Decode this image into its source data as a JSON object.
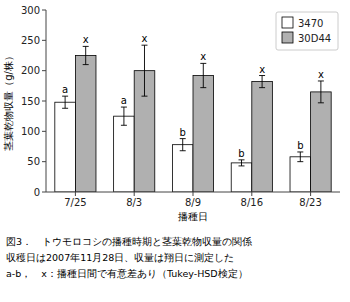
{
  "chart_data": {
    "type": "bar",
    "categories": [
      "7/25",
      "8/3",
      "8/9",
      "8/16",
      "8/23"
    ],
    "series": [
      {
        "name": "3470",
        "color": "#ffffff",
        "values": [
          148,
          125,
          78,
          48,
          58
        ],
        "errors": [
          10,
          15,
          10,
          5,
          8
        ],
        "labels": [
          "a",
          "a",
          "b",
          "b",
          "b"
        ]
      },
      {
        "name": "30D44",
        "color": "#b0b0b0",
        "values": [
          225,
          200,
          192,
          182,
          165
        ],
        "errors": [
          15,
          42,
          20,
          10,
          18
        ],
        "labels": [
          "x",
          "x",
          "x",
          "x",
          "x"
        ]
      }
    ],
    "xlabel": "播種日",
    "ylabel": "茎葉乾物収量（g/株）",
    "ylim": [
      0,
      300
    ],
    "yticks": [
      0,
      50,
      100,
      150,
      200,
      250,
      300
    ],
    "legend": "upper-right",
    "grid": false,
    "caption": [
      "図3．　トウモロコシの播種時期と茎葉乾物収量の関係",
      "収穫日は2007年11月28日、収量は翔日に測定した",
      "a-b，　x：播種日間で有意差あり（Tukey-HSD検定）"
    ]
  }
}
